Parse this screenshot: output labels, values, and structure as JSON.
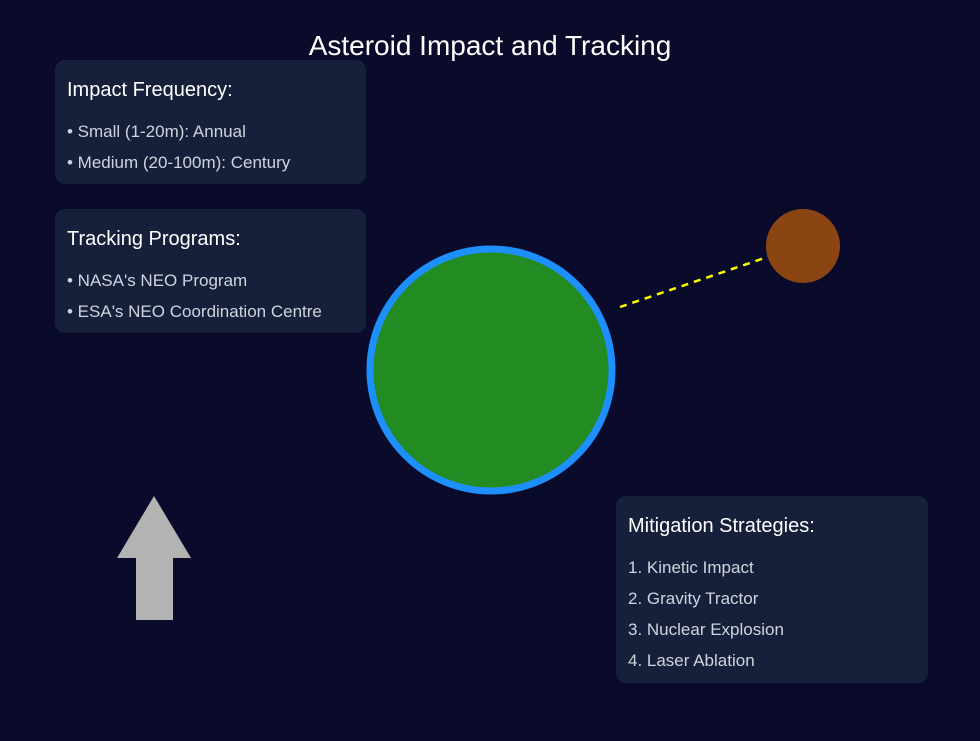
{
  "title": "Asteroid Impact and Tracking",
  "impact_frequency": {
    "heading": "Impact Frequency:",
    "items": [
      "• Small (1-20m): Annual",
      "• Medium (20-100m): Century"
    ]
  },
  "tracking_programs": {
    "heading": "Tracking Programs:",
    "items": [
      "• NASA's NEO Program",
      "• ESA's NEO Coordination Centre"
    ]
  },
  "mitigation_strategies": {
    "heading": "Mitigation Strategies:",
    "items": [
      "1. Kinetic Impact",
      "2. Gravity Tractor",
      "3. Nuclear Explosion",
      "4. Laser Ablation"
    ]
  },
  "colors": {
    "background": "#0a0b2b",
    "panel": "#16203b",
    "earth_fill": "#228b22",
    "earth_outline": "#1e8fff",
    "asteroid": "#8b4513",
    "trajectory": "#ffff00",
    "arrow": "#b3b3b3"
  }
}
